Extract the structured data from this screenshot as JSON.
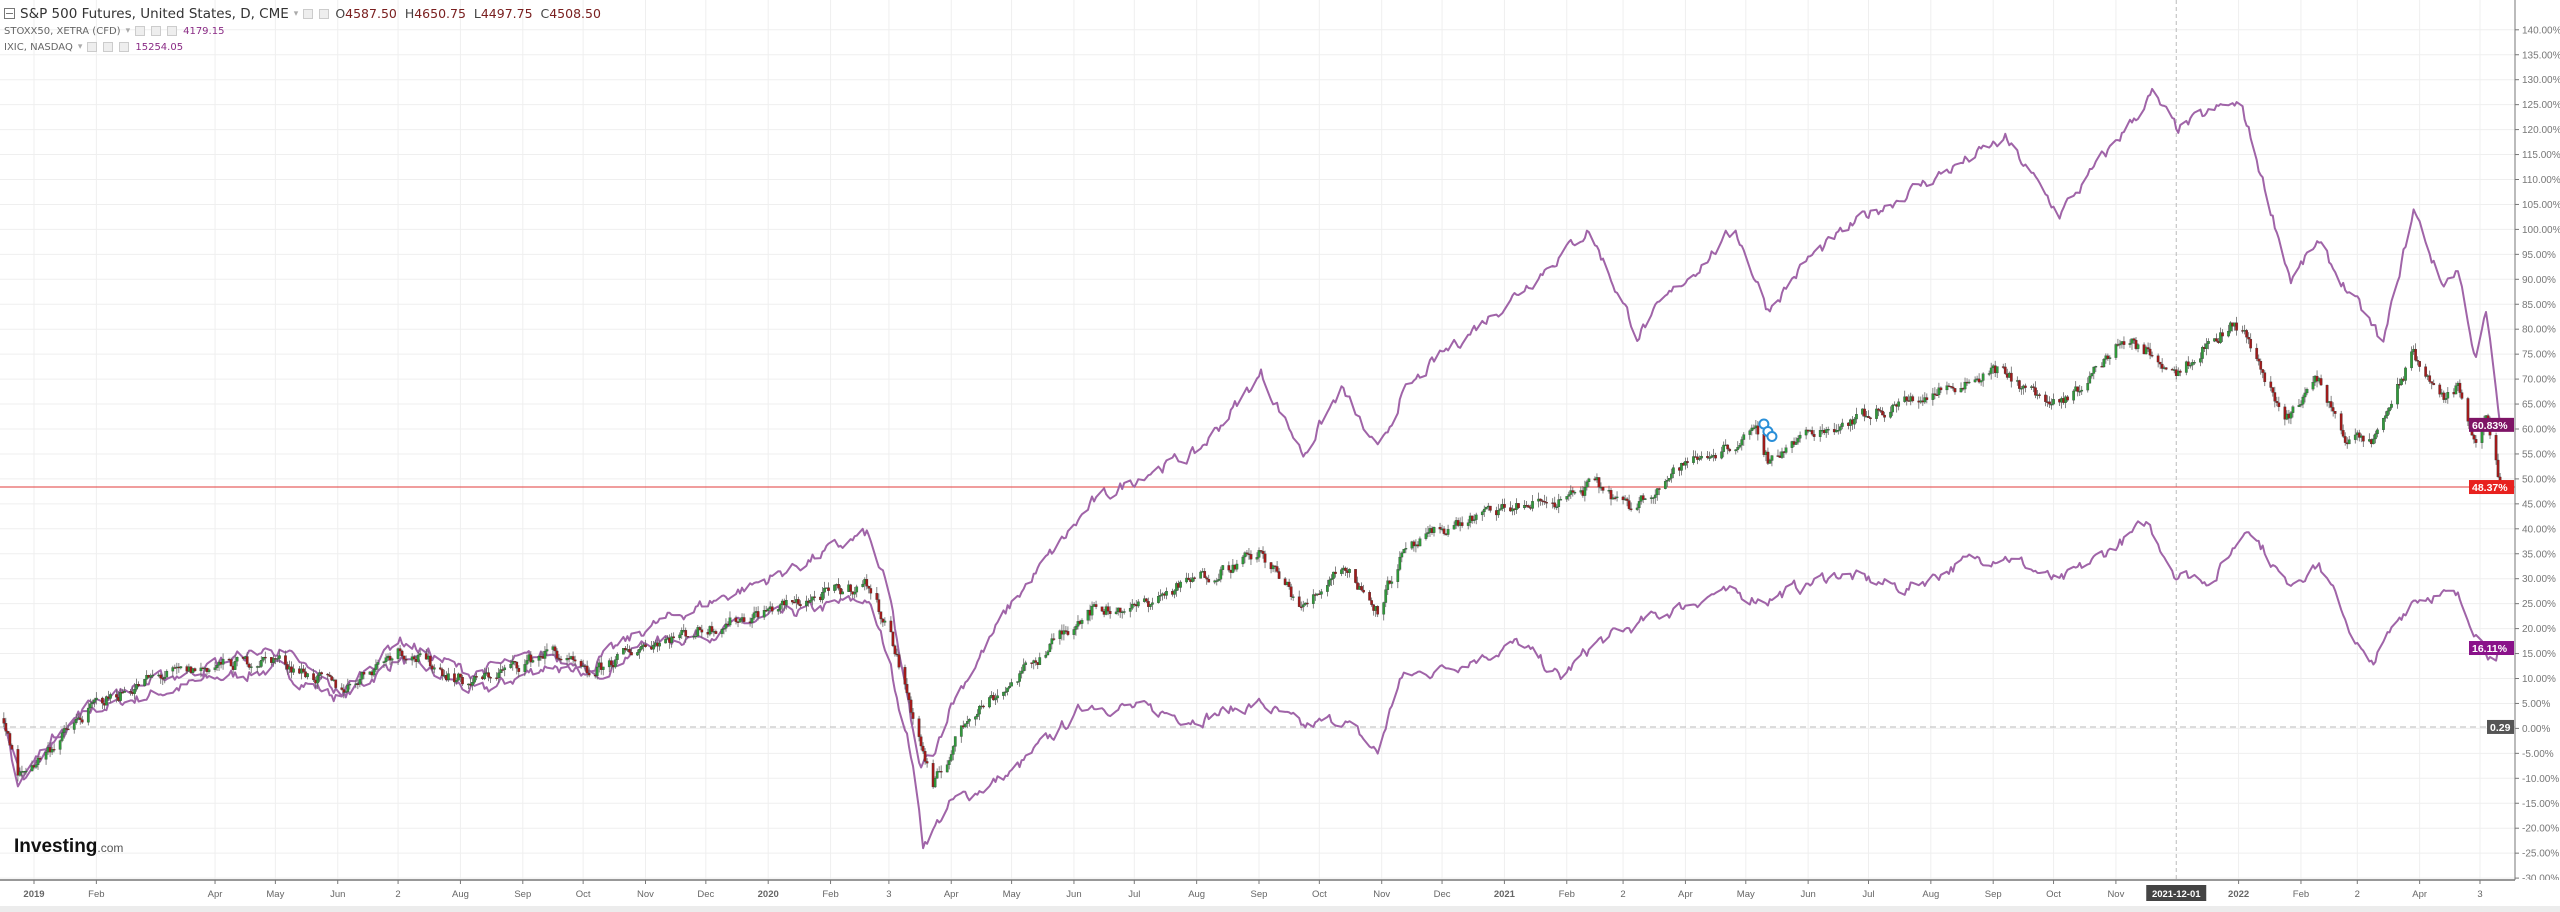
{
  "header": {
    "main_title": "S&P 500 Futures, United States, D, CME",
    "ohlc": {
      "o_label": "O",
      "o": "4587.50",
      "h_label": "H",
      "h": "4650.75",
      "l_label": "L",
      "l": "4497.75",
      "c_label": "C",
      "c": "4508.50"
    },
    "overlays": [
      {
        "name": "STOXX50, XETRA (CFD)",
        "value": "4179.15"
      },
      {
        "name": "IXIC, NASDAQ",
        "value": "15254.05"
      }
    ]
  },
  "logo": {
    "brand": "Investing",
    "suffix": ".com"
  },
  "colors": {
    "up": "#2f9a3a",
    "down": "#a11b1b",
    "overlay_line": "#a064a8",
    "last_price_line": "#e23b3b",
    "grid": "#efefef",
    "label_nasdaq": "#7e1466",
    "label_spx": "#e8211e",
    "label_stoxx": "#8a128a",
    "label_zero": "#555555",
    "marker": "#2a8fd8"
  },
  "chart_data": {
    "type": "candlestick+line",
    "y_axis": {
      "scale": "percent",
      "range": [
        -30,
        140
      ],
      "step": 5,
      "position": "right"
    },
    "y_tick_labels": [
      "140.00%",
      "135.00%",
      "130.00%",
      "125.00%",
      "120.00%",
      "115.00%",
      "110.00%",
      "105.00%",
      "100.00%",
      "95.00%",
      "90.00%",
      "85.00%",
      "80.00%",
      "75.00%",
      "70.00%",
      "65.00%",
      "60.00%",
      "55.00%",
      "50.00%",
      "45.00%",
      "40.00%",
      "35.00%",
      "30.00%",
      "25.00%",
      "20.00%",
      "15.00%",
      "10.00%",
      "5.00%",
      "0.00%",
      "-5.00%",
      "-10.00%",
      "-15.00%",
      "-20.00%",
      "-25.00%",
      "-30.00%"
    ],
    "y_tick_values": [
      140,
      135,
      130,
      125,
      120,
      115,
      110,
      105,
      100,
      95,
      90,
      85,
      80,
      75,
      70,
      65,
      60,
      55,
      50,
      45,
      40,
      35,
      30,
      25,
      20,
      15,
      10,
      5,
      0,
      -5,
      -10,
      -15,
      -20,
      -25,
      -30
    ],
    "x_axis": {
      "range": [
        "2018-12-15",
        "2022-05-11"
      ]
    },
    "x_ticks": [
      {
        "date": "2019-01-01",
        "label": "2019",
        "bold": true
      },
      {
        "date": "2019-02-01",
        "label": "Feb"
      },
      {
        "date": "2019-04-01",
        "label": "Apr"
      },
      {
        "date": "2019-05-01",
        "label": "May"
      },
      {
        "date": "2019-06-01",
        "label": "Jun"
      },
      {
        "date": "2019-07-01",
        "label": "2"
      },
      {
        "date": "2019-08-01",
        "label": "Aug"
      },
      {
        "date": "2019-09-01",
        "label": "Sep"
      },
      {
        "date": "2019-10-01",
        "label": "Oct"
      },
      {
        "date": "2019-11-01",
        "label": "Nov"
      },
      {
        "date": "2019-12-01",
        "label": "Dec"
      },
      {
        "date": "2020-01-01",
        "label": "2020",
        "bold": true
      },
      {
        "date": "2020-02-01",
        "label": "Feb"
      },
      {
        "date": "2020-03-01",
        "label": "3"
      },
      {
        "date": "2020-04-01",
        "label": "Apr"
      },
      {
        "date": "2020-05-01",
        "label": "May"
      },
      {
        "date": "2020-06-01",
        "label": "Jun"
      },
      {
        "date": "2020-07-01",
        "label": "Jul"
      },
      {
        "date": "2020-08-01",
        "label": "Aug"
      },
      {
        "date": "2020-09-01",
        "label": "Sep"
      },
      {
        "date": "2020-10-01",
        "label": "Oct"
      },
      {
        "date": "2020-11-01",
        "label": "Nov"
      },
      {
        "date": "2020-12-01",
        "label": "Dec"
      },
      {
        "date": "2021-01-01",
        "label": "2021",
        "bold": true
      },
      {
        "date": "2021-02-01",
        "label": "Feb"
      },
      {
        "date": "2021-03-01",
        "label": "2"
      },
      {
        "date": "2021-04-01",
        "label": "Apr"
      },
      {
        "date": "2021-05-01",
        "label": "May"
      },
      {
        "date": "2021-06-01",
        "label": "Jun"
      },
      {
        "date": "2021-07-01",
        "label": "Jul"
      },
      {
        "date": "2021-08-01",
        "label": "Aug"
      },
      {
        "date": "2021-09-01",
        "label": "Sep"
      },
      {
        "date": "2021-10-01",
        "label": "Oct"
      },
      {
        "date": "2021-11-01",
        "label": "Nov"
      },
      {
        "date": "2022-01-01",
        "label": "2022",
        "bold": true
      },
      {
        "date": "2022-02-01",
        "label": "Feb"
      },
      {
        "date": "2022-03-01",
        "label": "2"
      },
      {
        "date": "2022-04-01",
        "label": "Apr"
      },
      {
        "date": "2022-05-01",
        "label": "3"
      }
    ],
    "crosshair": {
      "date": "2021-12-01",
      "label": "2021-12-01"
    },
    "reference_lines": [
      {
        "value": 48.37,
        "label": "48.37%",
        "style": "solid"
      },
      {
        "value": 0.29,
        "label": "0.29",
        "style": "dashed"
      }
    ],
    "last_value_labels": [
      {
        "series": "IXIC, NASDAQ",
        "value": 60.83,
        "label": "60.83%"
      },
      {
        "series": "S&P 500 Futures, United States, D, CME",
        "value": 48.37,
        "label": "48.37%"
      },
      {
        "series": "STOXX50, XETRA (CFD)",
        "value": 16.11,
        "label": "16.11%"
      }
    ],
    "event_markers": [
      {
        "date": "2021-05-10",
        "value": 61
      },
      {
        "date": "2021-05-12",
        "value": 59.5
      },
      {
        "date": "2021-05-14",
        "value": 58.5
      }
    ],
    "series": [
      {
        "name": "S&P 500 Futures, United States, D, CME",
        "type": "candlestick",
        "points": [
          [
            "2018-12-17",
            2
          ],
          [
            "2018-12-24",
            -10
          ],
          [
            "2019-01-10",
            -3.5
          ],
          [
            "2019-02-01",
            5
          ],
          [
            "2019-03-01",
            10
          ],
          [
            "2019-04-01",
            12.5
          ],
          [
            "2019-05-01",
            14
          ],
          [
            "2019-06-03",
            7.7
          ],
          [
            "2019-07-01",
            16
          ],
          [
            "2019-08-05",
            9
          ],
          [
            "2019-09-01",
            13
          ],
          [
            "2019-09-15",
            15.7
          ],
          [
            "2019-10-03",
            10.5
          ],
          [
            "2019-11-01",
            17
          ],
          [
            "2019-12-01",
            20
          ],
          [
            "2020-01-01",
            23.7
          ],
          [
            "2020-02-19",
            29
          ],
          [
            "2020-03-01",
            20
          ],
          [
            "2020-03-12",
            4
          ],
          [
            "2020-03-23",
            -12
          ],
          [
            "2020-04-10",
            3
          ],
          [
            "2020-05-01",
            9
          ],
          [
            "2020-06-08",
            24
          ],
          [
            "2020-07-01",
            24
          ],
          [
            "2020-08-01",
            30
          ],
          [
            "2020-09-02",
            35
          ],
          [
            "2020-09-23",
            24
          ],
          [
            "2020-10-12",
            33
          ],
          [
            "2020-10-30",
            24
          ],
          [
            "2020-11-10",
            34
          ],
          [
            "2020-12-01",
            40
          ],
          [
            "2021-01-01",
            44
          ],
          [
            "2021-02-01",
            46
          ],
          [
            "2021-02-15",
            49
          ],
          [
            "2021-03-04",
            44
          ],
          [
            "2021-04-01",
            53
          ],
          [
            "2021-05-07",
            59
          ],
          [
            "2021-05-12",
            54
          ],
          [
            "2021-06-01",
            59
          ],
          [
            "2021-07-01",
            63
          ],
          [
            "2021-08-01",
            67
          ],
          [
            "2021-09-02",
            72
          ],
          [
            "2021-10-04",
            64
          ],
          [
            "2021-11-05",
            78
          ],
          [
            "2021-12-01",
            72
          ],
          [
            "2021-12-29",
            81
          ],
          [
            "2022-01-03",
            80
          ],
          [
            "2022-01-24",
            62
          ],
          [
            "2022-02-09",
            70
          ],
          [
            "2022-02-24",
            58
          ],
          [
            "2022-03-08",
            57
          ],
          [
            "2022-03-29",
            75
          ],
          [
            "2022-04-12",
            66
          ],
          [
            "2022-04-20",
            68
          ],
          [
            "2022-04-29",
            58
          ],
          [
            "2022-05-04",
            62
          ],
          [
            "2022-05-11",
            48.37
          ]
        ]
      },
      {
        "name": "STOXX50, XETRA (CFD)",
        "type": "line",
        "points": [
          [
            "2018-12-17",
            1
          ],
          [
            "2018-12-27",
            -11
          ],
          [
            "2019-01-10",
            -3
          ],
          [
            "2019-02-01",
            4
          ],
          [
            "2019-04-01",
            10
          ],
          [
            "2019-05-01",
            12
          ],
          [
            "2019-06-03",
            6
          ],
          [
            "2019-07-01",
            14
          ],
          [
            "2019-08-10",
            7
          ],
          [
            "2019-09-15",
            13
          ],
          [
            "2019-10-03",
            10
          ],
          [
            "2019-11-01",
            17
          ],
          [
            "2019-12-01",
            19
          ],
          [
            "2020-01-01",
            22
          ],
          [
            "2020-02-19",
            26
          ],
          [
            "2020-03-01",
            14
          ],
          [
            "2020-03-12",
            -5
          ],
          [
            "2020-03-18",
            -23
          ],
          [
            "2020-04-01",
            -15
          ],
          [
            "2020-05-01",
            -9
          ],
          [
            "2020-06-08",
            5
          ],
          [
            "2020-07-01",
            4
          ],
          [
            "2020-08-01",
            2
          ],
          [
            "2020-09-02",
            5
          ],
          [
            "2020-09-23",
            0
          ],
          [
            "2020-10-12",
            2
          ],
          [
            "2020-10-30",
            -5
          ],
          [
            "2020-11-10",
            10
          ],
          [
            "2020-12-01",
            12
          ],
          [
            "2021-01-08",
            17
          ],
          [
            "2021-01-29",
            10
          ],
          [
            "2021-02-15",
            17
          ],
          [
            "2021-03-15",
            22
          ],
          [
            "2021-04-15",
            27
          ],
          [
            "2021-05-12",
            26
          ],
          [
            "2021-06-15",
            31
          ],
          [
            "2021-07-20",
            28
          ],
          [
            "2021-08-15",
            33
          ],
          [
            "2021-09-06",
            35
          ],
          [
            "2021-10-04",
            29
          ],
          [
            "2021-11-17",
            41
          ],
          [
            "2021-12-01",
            31
          ],
          [
            "2021-12-20",
            30
          ],
          [
            "2022-01-06",
            41
          ],
          [
            "2022-01-24",
            29
          ],
          [
            "2022-02-10",
            33
          ],
          [
            "2022-03-07",
            12
          ],
          [
            "2022-03-28",
            26
          ],
          [
            "2022-04-08",
            27
          ],
          [
            "2022-04-20",
            26
          ],
          [
            "2022-05-09",
            13
          ],
          [
            "2022-05-11",
            16.11
          ]
        ]
      },
      {
        "name": "IXIC, NASDAQ",
        "type": "line",
        "points": [
          [
            "2018-12-17",
            1
          ],
          [
            "2018-12-24",
            -11
          ],
          [
            "2019-01-10",
            -2
          ],
          [
            "2019-02-01",
            6
          ],
          [
            "2019-04-01",
            13
          ],
          [
            "2019-05-01",
            16
          ],
          [
            "2019-06-03",
            7
          ],
          [
            "2019-07-01",
            18
          ],
          [
            "2019-08-05",
            11
          ],
          [
            "2019-09-15",
            15
          ],
          [
            "2019-10-03",
            12
          ],
          [
            "2019-11-01",
            20
          ],
          [
            "2019-12-01",
            25
          ],
          [
            "2020-01-01",
            30
          ],
          [
            "2020-02-19",
            39
          ],
          [
            "2020-03-01",
            27
          ],
          [
            "2020-03-16",
            -8
          ],
          [
            "2020-03-23",
            -5
          ],
          [
            "2020-04-01",
            5
          ],
          [
            "2020-05-01",
            25
          ],
          [
            "2020-06-10",
            45
          ],
          [
            "2020-07-10",
            52
          ],
          [
            "2020-08-01",
            55
          ],
          [
            "2020-09-02",
            71
          ],
          [
            "2020-09-23",
            55
          ],
          [
            "2020-10-12",
            68
          ],
          [
            "2020-10-30",
            55
          ],
          [
            "2020-11-10",
            66
          ],
          [
            "2020-12-01",
            75
          ],
          [
            "2021-01-01",
            85
          ],
          [
            "2021-02-12",
            100
          ],
          [
            "2021-03-08",
            79
          ],
          [
            "2021-04-01",
            90
          ],
          [
            "2021-04-26",
            100
          ],
          [
            "2021-05-12",
            84
          ],
          [
            "2021-06-01",
            94
          ],
          [
            "2021-07-01",
            103
          ],
          [
            "2021-08-01",
            110
          ],
          [
            "2021-09-07",
            118
          ],
          [
            "2021-10-04",
            103
          ],
          [
            "2021-11-19",
            127
          ],
          [
            "2021-12-01",
            120
          ],
          [
            "2021-12-27",
            125
          ],
          [
            "2022-01-03",
            124
          ],
          [
            "2022-01-27",
            90
          ],
          [
            "2022-02-09",
            97
          ],
          [
            "2022-03-14",
            77
          ],
          [
            "2022-03-29",
            104
          ],
          [
            "2022-04-12",
            89
          ],
          [
            "2022-04-20",
            92
          ],
          [
            "2022-04-29",
            74
          ],
          [
            "2022-05-04",
            83
          ],
          [
            "2022-05-11",
            60.83
          ]
        ]
      }
    ]
  }
}
